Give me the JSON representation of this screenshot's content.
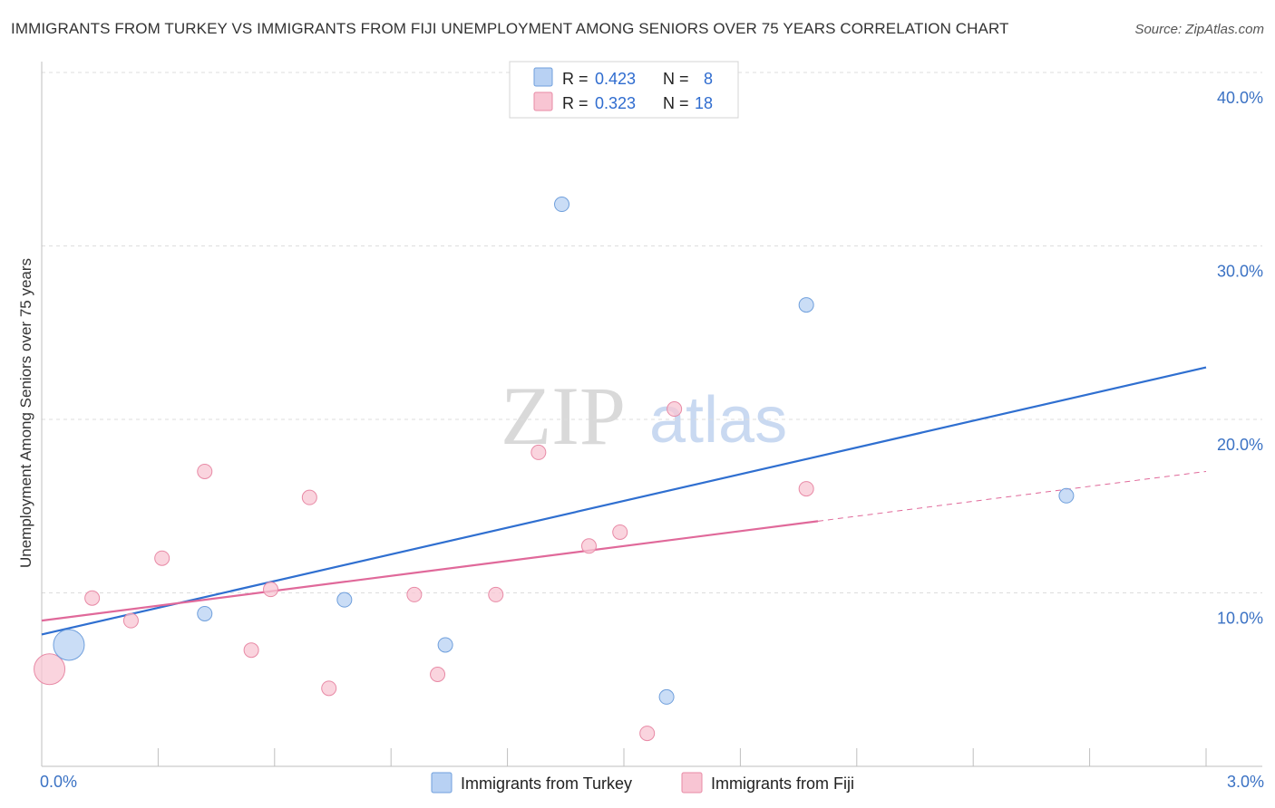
{
  "title": "IMMIGRANTS FROM TURKEY VS IMMIGRANTS FROM FIJI UNEMPLOYMENT AMONG SENIORS OVER 75 YEARS CORRELATION CHART",
  "source": "Source: ZipAtlas.com",
  "watermark": {
    "zip": "ZIP",
    "atlas": "atlas"
  },
  "colors": {
    "turkey_fill": "#b8d1f3",
    "turkey_stroke": "#6f9fdc",
    "turkey_line": "#2f6fd0",
    "fiji_fill": "#f8c5d3",
    "fiji_stroke": "#e88aa6",
    "fiji_line": "#e0699a",
    "grid": "#dddddd",
    "tick_label": "#3b72c4"
  },
  "legend": {
    "rows": [
      {
        "r_label": "R = ",
        "r_value": "0.423",
        "n_label": "N = ",
        "n_value": "8"
      },
      {
        "r_label": "R = ",
        "r_value": "0.323",
        "n_label": "N = ",
        "n_value": "18"
      }
    ]
  },
  "chart_data": {
    "type": "scatter",
    "title": "IMMIGRANTS FROM TURKEY VS IMMIGRANTS FROM FIJI UNEMPLOYMENT AMONG SENIORS OVER 75 YEARS CORRELATION CHART",
    "xlabel": "",
    "ylabel": "Unemployment Among Seniors over 75 years",
    "xlim": [
      0,
      3
    ],
    "ylim": [
      0,
      40
    ],
    "x_tick_labels": [
      {
        "value": 0,
        "label": "0.0%"
      },
      {
        "value": 3,
        "label": "3.0%"
      }
    ],
    "y_tick_labels": [
      {
        "value": 10,
        "label": "10.0%"
      },
      {
        "value": 20,
        "label": "20.0%"
      },
      {
        "value": 30,
        "label": "30.0%"
      },
      {
        "value": 40,
        "label": "40.0%"
      }
    ],
    "series": [
      {
        "name": "Immigrants from Turkey",
        "color": "#6f9fdc",
        "points": [
          {
            "x": 0.07,
            "y": 7.0,
            "big": true
          },
          {
            "x": 0.42,
            "y": 8.8
          },
          {
            "x": 0.78,
            "y": 9.6
          },
          {
            "x": 1.04,
            "y": 7.0
          },
          {
            "x": 1.34,
            "y": 32.4
          },
          {
            "x": 1.61,
            "y": 4.0
          },
          {
            "x": 1.97,
            "y": 26.6
          },
          {
            "x": 2.64,
            "y": 15.6
          }
        ],
        "trend": {
          "x0": 0.0,
          "y0": 7.6,
          "x1": 3.0,
          "y1": 23.0,
          "dashed_from": null
        }
      },
      {
        "name": "Immigrants from Fiji",
        "color": "#e88aa6",
        "points": [
          {
            "x": 0.02,
            "y": 5.6,
            "big": true
          },
          {
            "x": 0.13,
            "y": 9.7
          },
          {
            "x": 0.23,
            "y": 8.4
          },
          {
            "x": 0.31,
            "y": 12.0
          },
          {
            "x": 0.42,
            "y": 17.0
          },
          {
            "x": 0.54,
            "y": 6.7
          },
          {
            "x": 0.59,
            "y": 10.2
          },
          {
            "x": 0.69,
            "y": 15.5
          },
          {
            "x": 0.74,
            "y": 4.5
          },
          {
            "x": 0.96,
            "y": 9.9
          },
          {
            "x": 1.02,
            "y": 5.3
          },
          {
            "x": 1.17,
            "y": 9.9
          },
          {
            "x": 1.28,
            "y": 18.1
          },
          {
            "x": 1.41,
            "y": 12.7
          },
          {
            "x": 1.49,
            "y": 13.5
          },
          {
            "x": 1.56,
            "y": 1.9
          },
          {
            "x": 1.63,
            "y": 20.6
          },
          {
            "x": 1.97,
            "y": 16.0
          }
        ],
        "trend": {
          "x0": 0.0,
          "y0": 8.4,
          "x1": 3.0,
          "y1": 17.0,
          "dashed_from": 2.0
        }
      }
    ],
    "grid": true,
    "legend_position": "top-center"
  }
}
